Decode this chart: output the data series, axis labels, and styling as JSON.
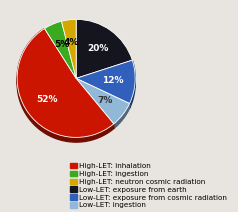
{
  "labels": [
    "High-LET: inhalation",
    "High-LET: ingestion",
    "High-LET: neutron cosmic radiation",
    "Low-LET: exposure from earth",
    "Low-LET: exposure from cosmic radiation",
    "Low-LET: ingestion"
  ],
  "values": [
    52,
    5,
    4,
    20,
    12,
    7
  ],
  "colors": [
    "#cc1500",
    "#3aaa1e",
    "#d4a800",
    "#151520",
    "#3060bb",
    "#92b8d8"
  ],
  "background_color": "#e8e4e0",
  "legend_fontsize": 5.2,
  "pct_fontsize": 6.5,
  "startangle": 90
}
